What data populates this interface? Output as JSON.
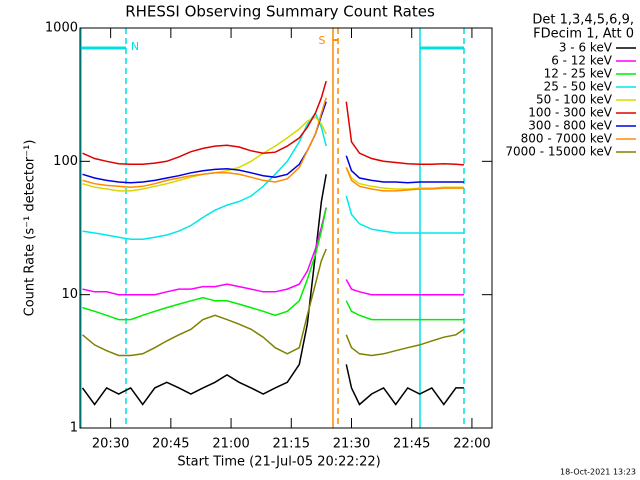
{
  "chart_data": {
    "type": "line",
    "title": "RHESSI Observing Summary Count Rates",
    "x_label": "Start Time (21-Jul-05 20:22:22)",
    "y_label": "Count Rate (s⁻¹ detector⁻¹)",
    "legend_header": [
      "Det 1,3,4,5,6,9,",
      "FDecim 1, Att 0"
    ],
    "date_stamp": "18-Oct-2021 13:23",
    "annotations": [
      {
        "text": "N",
        "color": "#00e0e0"
      },
      {
        "text": "S",
        "color": "#ff8c00"
      }
    ],
    "log_y": true,
    "legend": "right",
    "ylim": [
      1,
      1000
    ],
    "yticks": [
      1,
      10,
      100,
      1000
    ],
    "xlim": [
      1222.37,
      1325
    ],
    "xticks": [
      {
        "value": 1230,
        "label": "20:30"
      },
      {
        "value": 1245,
        "label": "20:45"
      },
      {
        "value": 1260,
        "label": "21:00"
      },
      {
        "value": 1275,
        "label": "21:15"
      },
      {
        "value": 1290,
        "label": "21:30"
      },
      {
        "value": 1305,
        "label": "21:45"
      },
      {
        "value": 1320,
        "label": "22:00"
      }
    ],
    "x": [
      1223,
      1226,
      1229,
      1232,
      1235,
      1238,
      1241,
      1244,
      1247,
      1250,
      1253,
      1256,
      1259,
      1262,
      1265,
      1268,
      1271,
      1274,
      1277,
      1279,
      1281,
      1282.5,
      1283.7,
      1286,
      1288.7,
      1290,
      1292,
      1295,
      1298,
      1301,
      1304,
      1307,
      1310,
      1313,
      1316,
      1318
    ],
    "series": [
      {
        "name": "3 - 6 keV",
        "color": "#000000",
        "values": [
          2,
          1.5,
          2,
          1.8,
          2,
          1.5,
          2,
          2.2,
          2,
          1.8,
          2,
          2.2,
          2.5,
          2.2,
          2,
          1.8,
          2,
          2.2,
          3,
          6,
          20,
          50,
          80,
          null,
          3,
          2,
          1.5,
          1.8,
          2,
          1.5,
          2,
          1.8,
          2,
          1.5,
          2,
          2
        ]
      },
      {
        "name": "6 - 12 keV",
        "color": "#ff00ff",
        "values": [
          11,
          10.5,
          10.5,
          10,
          10,
          10,
          10,
          10.5,
          11,
          11,
          11.5,
          11.5,
          12,
          11.5,
          11,
          10.5,
          10.5,
          11,
          12,
          15,
          22,
          32,
          45,
          null,
          13,
          11,
          10.5,
          10,
          10,
          10,
          10,
          10,
          10,
          10,
          10,
          10
        ]
      },
      {
        "name": "12 - 25 keV",
        "color": "#00ee00",
        "values": [
          8,
          7.5,
          7,
          6.5,
          6.5,
          7,
          7.5,
          8,
          8.5,
          9,
          9.5,
          9,
          9,
          8.5,
          8,
          7.5,
          7,
          7.5,
          9,
          13,
          20,
          30,
          45,
          null,
          9,
          7.5,
          7,
          6.5,
          6.5,
          6.5,
          6.5,
          6.5,
          6.5,
          6.5,
          6.5,
          6.5
        ]
      },
      {
        "name": "25 - 50 keV",
        "color": "#00e8e8",
        "values": [
          30,
          29,
          28,
          27,
          26,
          26,
          27,
          28,
          30,
          33,
          38,
          43,
          47,
          50,
          55,
          65,
          80,
          100,
          140,
          190,
          230,
          180,
          130,
          null,
          55,
          40,
          34,
          31,
          30,
          29,
          29,
          29,
          29,
          29,
          29,
          29
        ]
      },
      {
        "name": "50 - 100 keV",
        "color": "#d8d800",
        "values": [
          68,
          64,
          62,
          60,
          60,
          62,
          65,
          68,
          72,
          76,
          80,
          82,
          85,
          90,
          100,
          115,
          130,
          150,
          175,
          200,
          215,
          190,
          160,
          null,
          90,
          75,
          68,
          65,
          63,
          62,
          62,
          63,
          63,
          64,
          64,
          64
        ]
      },
      {
        "name": "100 - 300 keV",
        "color": "#e00000",
        "values": [
          115,
          105,
          100,
          96,
          95,
          95,
          97,
          100,
          108,
          118,
          125,
          130,
          132,
          128,
          120,
          115,
          117,
          130,
          150,
          180,
          230,
          300,
          400,
          null,
          280,
          140,
          115,
          105,
          100,
          98,
          96,
          95,
          95,
          96,
          95,
          94
        ]
      },
      {
        "name": "300 - 800 keV",
        "color": "#0000e0",
        "values": [
          80,
          75,
          72,
          70,
          69,
          70,
          72,
          75,
          78,
          82,
          85,
          87,
          88,
          86,
          82,
          78,
          76,
          80,
          95,
          120,
          160,
          220,
          280,
          null,
          110,
          85,
          75,
          72,
          70,
          70,
          69,
          70,
          70,
          70,
          70,
          70
        ]
      },
      {
        "name": "800 - 7000 keV",
        "color": "#ff8c00",
        "values": [
          72,
          68,
          66,
          65,
          64,
          65,
          68,
          72,
          75,
          78,
          80,
          82,
          82,
          80,
          76,
          72,
          70,
          74,
          90,
          120,
          160,
          230,
          300,
          null,
          90,
          72,
          65,
          62,
          60,
          60,
          61,
          62,
          62,
          63,
          63,
          63
        ]
      },
      {
        "name": "7000 - 15000 keV",
        "color": "#808000",
        "values": [
          5,
          4.2,
          3.8,
          3.5,
          3.5,
          3.6,
          4,
          4.5,
          5,
          5.5,
          6.5,
          7,
          6.5,
          6,
          5.5,
          4.8,
          4,
          3.6,
          4,
          7,
          12,
          18,
          22,
          null,
          5,
          4,
          3.6,
          3.5,
          3.6,
          3.8,
          4,
          4.2,
          4.5,
          4.8,
          5,
          5.5
        ]
      }
    ]
  }
}
